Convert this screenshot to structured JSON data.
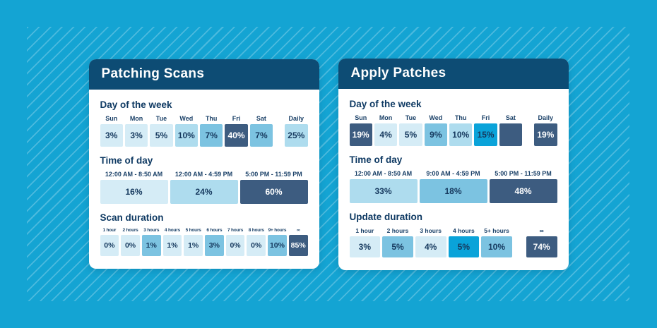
{
  "colors": {
    "page_bg": "#14a4d3",
    "stripe": "rgba(255,255,255,0.24)",
    "header_bg": "#0d4c74",
    "card_bg": "#ffffff",
    "text_navy": "#16395e",
    "tones": {
      "lightest": "#d5ecf6",
      "light": "#aedcee",
      "medium": "#7cc3e1",
      "bright": "#0aa3d9",
      "dark": "#3d5c80"
    }
  },
  "cards": [
    {
      "title": "Patching Scans",
      "sections": [
        {
          "heading": "Day of the week",
          "kind": "kind-days",
          "cells": [
            {
              "label": "Sun",
              "value": "3%",
              "tone": "lightest"
            },
            {
              "label": "Mon",
              "value": "3%",
              "tone": "lightest"
            },
            {
              "label": "Tue",
              "value": "5%",
              "tone": "lightest"
            },
            {
              "label": "Wed",
              "value": "10%",
              "tone": "light"
            },
            {
              "label": "Thu",
              "value": "7%",
              "tone": "medium"
            },
            {
              "label": "Fri",
              "value": "40%",
              "tone": "dark"
            },
            {
              "label": "Sat",
              "value": "7%",
              "tone": "medium"
            },
            {
              "label": "Daily",
              "value": "25%",
              "tone": "light",
              "gap": true
            }
          ]
        },
        {
          "heading": "Time of day",
          "kind": "kind-times",
          "cells": [
            {
              "label": "12:00 AM - 8:50 AM",
              "value": "16%",
              "tone": "lightest"
            },
            {
              "label": "12:00 AM - 4:59 PM",
              "value": "24%",
              "tone": "light"
            },
            {
              "label": "5:00 PM - 11:59 PM",
              "value": "60%",
              "tone": "dark"
            }
          ]
        },
        {
          "heading": "Scan duration",
          "kind": "kind-dur10",
          "cells": [
            {
              "label": "1 hour",
              "value": "0%",
              "tone": "lightest"
            },
            {
              "label": "2 hours",
              "value": "0%",
              "tone": "lightest"
            },
            {
              "label": "3 hours",
              "value": "1%",
              "tone": "medium"
            },
            {
              "label": "4 hours",
              "value": "1%",
              "tone": "lightest"
            },
            {
              "label": "5 hours",
              "value": "1%",
              "tone": "lightest"
            },
            {
              "label": "6 hours",
              "value": "3%",
              "tone": "medium"
            },
            {
              "label": "7 hours",
              "value": "0%",
              "tone": "lightest"
            },
            {
              "label": "8 hours",
              "value": "0%",
              "tone": "lightest"
            },
            {
              "label": "9+ hours",
              "value": "10%",
              "tone": "medium"
            },
            {
              "label": "∞",
              "value": "85%",
              "tone": "dark"
            }
          ]
        }
      ]
    },
    {
      "title": "Apply Patches",
      "sections": [
        {
          "heading": "Day of the week",
          "kind": "kind-days",
          "cells": [
            {
              "label": "Sun",
              "value": "19%",
              "tone": "dark"
            },
            {
              "label": "Mon",
              "value": "4%",
              "tone": "lightest"
            },
            {
              "label": "Tue",
              "value": "5%",
              "tone": "lightest"
            },
            {
              "label": "Wed",
              "value": "9%",
              "tone": "medium"
            },
            {
              "label": "Thu",
              "value": "10%",
              "tone": "light"
            },
            {
              "label": "Fri",
              "value": "15%",
              "tone": "bright"
            },
            {
              "label": "Sat",
              "value": "",
              "tone": "dark"
            },
            {
              "label": "Daily",
              "value": "19%",
              "tone": "dark",
              "gap": true
            }
          ]
        },
        {
          "heading": "Time of day",
          "kind": "kind-times",
          "cells": [
            {
              "label": "12:00 AM - 8:50 AM",
              "value": "33%",
              "tone": "light"
            },
            {
              "label": "9:00 AM - 4:59 PM",
              "value": "18%",
              "tone": "medium"
            },
            {
              "label": "5:00 PM - 11:59 PM",
              "value": "48%",
              "tone": "dark"
            }
          ]
        },
        {
          "heading": "Update duration",
          "kind": "kind-dur5",
          "cells": [
            {
              "label": "1 hour",
              "value": "3%",
              "tone": "lightest"
            },
            {
              "label": "2 hours",
              "value": "5%",
              "tone": "medium"
            },
            {
              "label": "3 hours",
              "value": "4%",
              "tone": "lightest"
            },
            {
              "label": "4 hours",
              "value": "5%",
              "tone": "bright"
            },
            {
              "label": "5+ hours",
              "value": "10%",
              "tone": "medium"
            },
            {
              "label": "∞",
              "value": "74%",
              "tone": "dark",
              "gap": true
            }
          ]
        }
      ]
    }
  ],
  "chart_data": [
    {
      "type": "heatmap",
      "title": "Patching Scans",
      "series": [
        {
          "name": "Day of the week",
          "categories": [
            "Sun",
            "Mon",
            "Tue",
            "Wed",
            "Thu",
            "Fri",
            "Sat",
            "Daily"
          ],
          "values": [
            3,
            3,
            5,
            10,
            7,
            40,
            7,
            25
          ]
        },
        {
          "name": "Time of day",
          "categories": [
            "12:00 AM - 8:50 AM",
            "12:00 AM - 4:59 PM",
            "5:00 PM - 11:59 PM"
          ],
          "values": [
            16,
            24,
            60
          ]
        },
        {
          "name": "Scan duration",
          "categories": [
            "1 hour",
            "2 hours",
            "3 hours",
            "4 hours",
            "5 hours",
            "6 hours",
            "7 hours",
            "8 hours",
            "9+ hours",
            "∞"
          ],
          "values": [
            0,
            0,
            1,
            1,
            1,
            3,
            0,
            0,
            10,
            85
          ]
        }
      ]
    },
    {
      "type": "heatmap",
      "title": "Apply Patches",
      "series": [
        {
          "name": "Day of the week",
          "categories": [
            "Sun",
            "Mon",
            "Tue",
            "Wed",
            "Thu",
            "Fri",
            "Sat",
            "Daily"
          ],
          "values": [
            19,
            4,
            5,
            9,
            10,
            15,
            null,
            19
          ]
        },
        {
          "name": "Time of day",
          "categories": [
            "12:00 AM - 8:50 AM",
            "9:00 AM - 4:59 PM",
            "5:00 PM - 11:59 PM"
          ],
          "values": [
            33,
            18,
            48
          ]
        },
        {
          "name": "Update duration",
          "categories": [
            "1 hour",
            "2 hours",
            "3 hours",
            "4 hours",
            "5+ hours",
            "∞"
          ],
          "values": [
            3,
            5,
            4,
            5,
            10,
            74
          ]
        }
      ]
    }
  ]
}
